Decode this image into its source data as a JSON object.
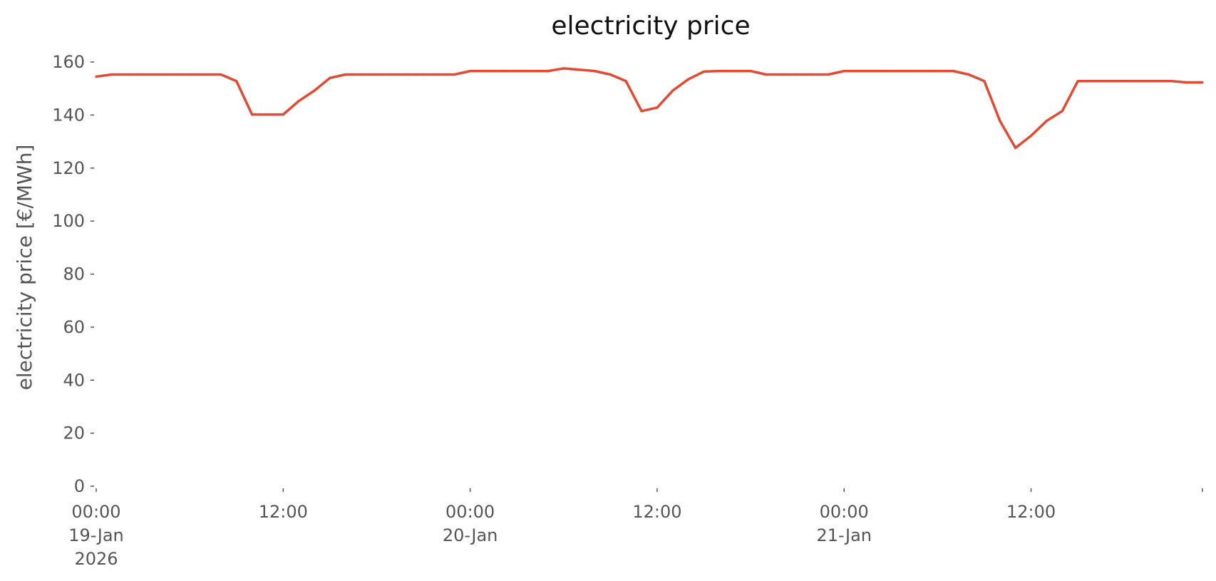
{
  "chart_data": {
    "type": "line",
    "title": "electricity price",
    "xlabel": "",
    "ylabel": "electricity price [€/MWh]",
    "ylim": [
      0,
      160
    ],
    "yticks": [
      0,
      20,
      40,
      60,
      80,
      100,
      120,
      140,
      160
    ],
    "xlim": [
      "2026-01-19 00:00",
      "2026-01-21 23:00"
    ],
    "grid": false,
    "legend": "none",
    "color": "#E24A33",
    "xticks": [
      {
        "at": "2026-01-19 00:00",
        "lines": [
          "00:00",
          "19-Jan",
          "2026"
        ]
      },
      {
        "at": "2026-01-19 12:00",
        "lines": [
          "12:00"
        ]
      },
      {
        "at": "2026-01-20 00:00",
        "lines": [
          "00:00",
          "20-Jan"
        ]
      },
      {
        "at": "2026-01-20 12:00",
        "lines": [
          "12:00"
        ]
      },
      {
        "at": "2026-01-21 00:00",
        "lines": [
          "00:00",
          "21-Jan"
        ]
      },
      {
        "at": "2026-01-21 12:00",
        "lines": [
          "12:00"
        ]
      },
      {
        "at": "2026-01-21 23:00",
        "lines": []
      }
    ],
    "series": [
      {
        "x": [
          "2026-01-19 00:00",
          "2026-01-19 01:00",
          "2026-01-19 02:00",
          "2026-01-19 03:00",
          "2026-01-19 04:00",
          "2026-01-19 05:00",
          "2026-01-19 06:00",
          "2026-01-19 07:00",
          "2026-01-19 08:00",
          "2026-01-19 09:00",
          "2026-01-19 10:00",
          "2026-01-19 11:00",
          "2026-01-19 12:00",
          "2026-01-19 13:00",
          "2026-01-19 14:00",
          "2026-01-19 15:00",
          "2026-01-19 16:00",
          "2026-01-19 17:00",
          "2026-01-19 18:00",
          "2026-01-19 19:00",
          "2026-01-19 20:00",
          "2026-01-19 21:00",
          "2026-01-19 22:00",
          "2026-01-19 23:00",
          "2026-01-20 00:00",
          "2026-01-20 01:00",
          "2026-01-20 02:00",
          "2026-01-20 03:00",
          "2026-01-20 04:00",
          "2026-01-20 05:00",
          "2026-01-20 06:00",
          "2026-01-20 07:00",
          "2026-01-20 08:00",
          "2026-01-20 09:00",
          "2026-01-20 10:00",
          "2026-01-20 11:00",
          "2026-01-20 12:00",
          "2026-01-20 13:00",
          "2026-01-20 14:00",
          "2026-01-20 15:00",
          "2026-01-20 16:00",
          "2026-01-20 17:00",
          "2026-01-20 18:00",
          "2026-01-20 19:00",
          "2026-01-20 20:00",
          "2026-01-20 21:00",
          "2026-01-20 22:00",
          "2026-01-20 23:00",
          "2026-01-21 00:00",
          "2026-01-21 01:00",
          "2026-01-21 02:00",
          "2026-01-21 03:00",
          "2026-01-21 04:00",
          "2026-01-21 05:00",
          "2026-01-21 06:00",
          "2026-01-21 07:00",
          "2026-01-21 08:00",
          "2026-01-21 09:00",
          "2026-01-21 10:00",
          "2026-01-21 11:00",
          "2026-01-21 12:00",
          "2026-01-21 13:00",
          "2026-01-21 14:00",
          "2026-01-21 15:00",
          "2026-01-21 16:00",
          "2026-01-21 17:00",
          "2026-01-21 18:00",
          "2026-01-21 19:00",
          "2026-01-21 20:00",
          "2026-01-21 21:00",
          "2026-01-21 22:00",
          "2026-01-21 23:00"
        ],
        "values": [
          154.5,
          155.3,
          155.3,
          155.3,
          155.3,
          155.3,
          155.3,
          155.3,
          155.3,
          152.8,
          140.2,
          140.2,
          140.2,
          145.3,
          149.2,
          154.0,
          155.3,
          155.3,
          155.3,
          155.3,
          155.3,
          155.3,
          155.3,
          155.3,
          156.6,
          156.6,
          156.6,
          156.6,
          156.6,
          156.6,
          157.6,
          157.1,
          156.6,
          155.3,
          152.8,
          141.5,
          142.8,
          149.2,
          153.5,
          156.4,
          156.6,
          156.6,
          156.6,
          155.3,
          155.3,
          155.3,
          155.3,
          155.3,
          156.6,
          156.6,
          156.6,
          156.6,
          156.6,
          156.6,
          156.6,
          156.6,
          155.3,
          152.8,
          137.8,
          127.6,
          132.2,
          137.8,
          141.5,
          152.8,
          152.8,
          152.8,
          152.8,
          152.8,
          152.8,
          152.8,
          152.3,
          152.3
        ]
      }
    ]
  }
}
